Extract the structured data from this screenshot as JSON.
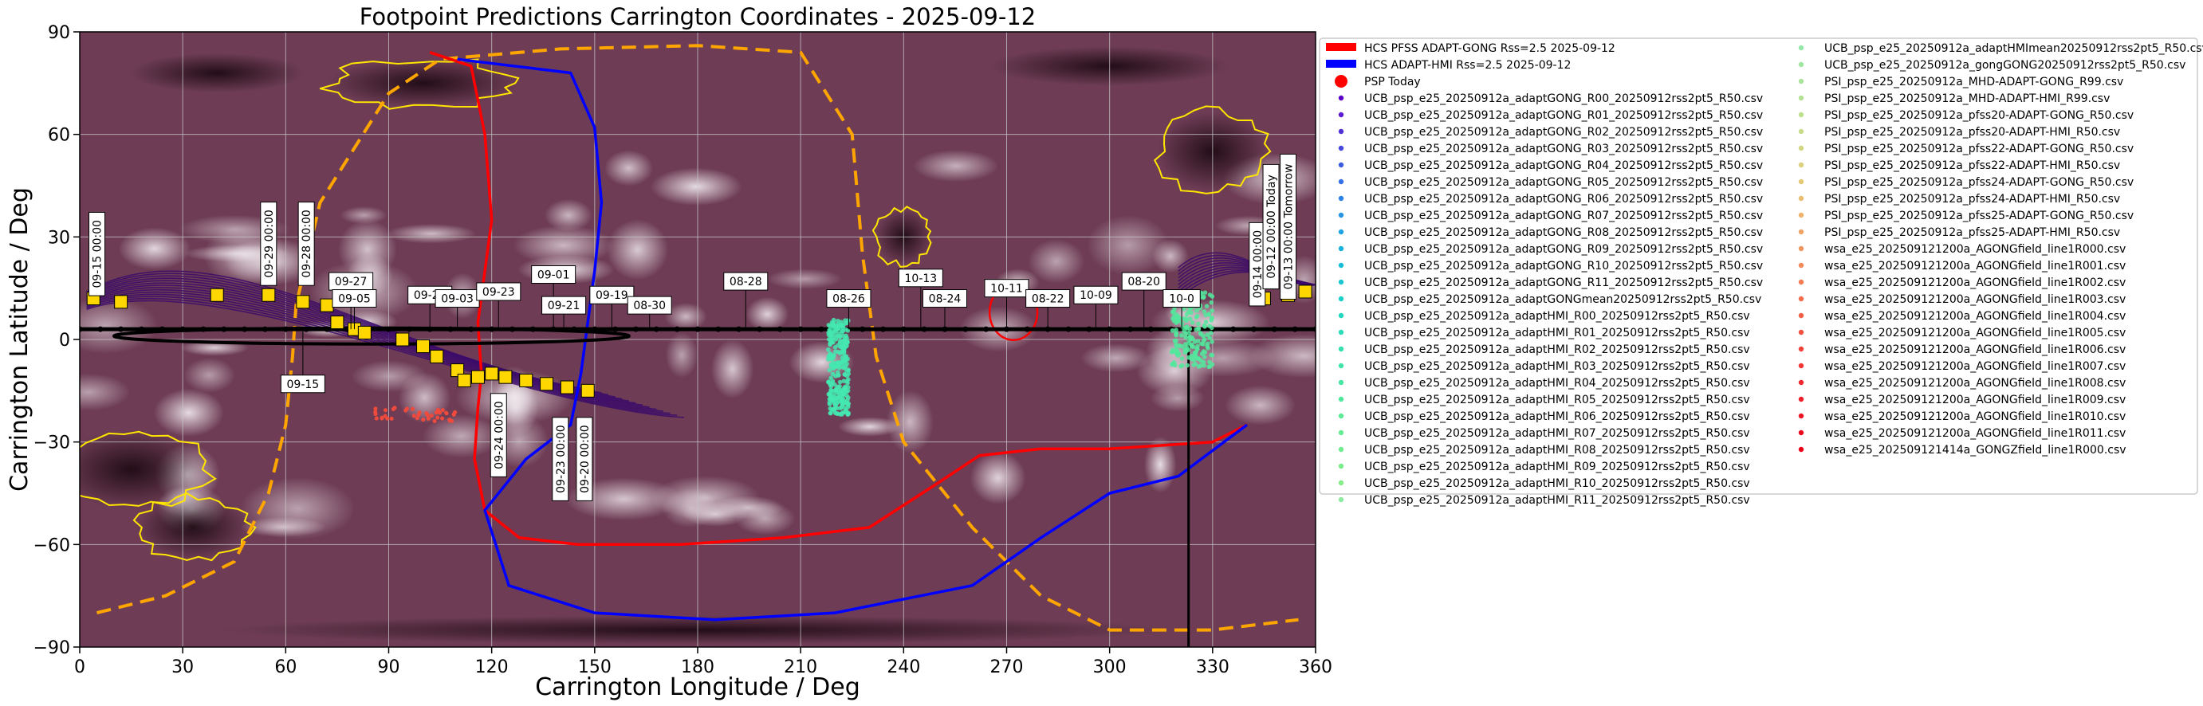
{
  "chart_data": {
    "type": "scatter",
    "title": "Footpoint Predictions Carrington Coordinates - 2025-09-12",
    "xlabel": "Carrington Longitude / Deg",
    "ylabel": "Carrington Latitude / Deg",
    "xlim": [
      0,
      360
    ],
    "ylim": [
      -90,
      90
    ],
    "xticks": [
      "0",
      "30",
      "60",
      "90",
      "120",
      "150",
      "180",
      "210",
      "240",
      "270",
      "300",
      "330",
      "360"
    ],
    "yticks": [
      "90",
      "60",
      "30",
      "0",
      "−30",
      "−60",
      "−90"
    ],
    "grid": true,
    "legend_position": "right",
    "colors": {
      "hcs_gong": "#ff0000",
      "hcs_hmi": "#0000ff",
      "psp_today": "#ff0000",
      "neutral_line": "#ffa500",
      "coronal_hole_contour": "#ffe600",
      "field_lines": "#3b0a6b",
      "footpoint_marker": "#ffd700",
      "background": "#6b3a52"
    },
    "hcs_gong": [
      [
        102,
        84
      ],
      [
        114,
        80
      ],
      [
        118,
        60
      ],
      [
        120,
        35
      ],
      [
        118,
        20
      ],
      [
        116,
        5
      ],
      [
        117,
        -10
      ],
      [
        116,
        -20
      ],
      [
        115,
        -35
      ],
      [
        118,
        -50
      ],
      [
        128,
        -58
      ],
      [
        145,
        -60
      ],
      [
        175,
        -60
      ],
      [
        205,
        -58
      ],
      [
        230,
        -55
      ],
      [
        250,
        -42
      ],
      [
        262,
        -34
      ],
      [
        280,
        -32
      ],
      [
        300,
        -32
      ],
      [
        330,
        -30
      ],
      [
        340,
        -25
      ]
    ],
    "hcs_hmi": [
      [
        110,
        82
      ],
      [
        143,
        78
      ],
      [
        150,
        62
      ],
      [
        152,
        40
      ],
      [
        150,
        20
      ],
      [
        148,
        5
      ],
      [
        146,
        -10
      ],
      [
        143,
        -25
      ],
      [
        130,
        -35
      ],
      [
        118,
        -50
      ],
      [
        125,
        -72
      ],
      [
        150,
        -80
      ],
      [
        185,
        -82
      ],
      [
        220,
        -80
      ],
      [
        260,
        -72
      ],
      [
        280,
        -58
      ],
      [
        300,
        -45
      ],
      [
        320,
        -40
      ],
      [
        340,
        -25
      ]
    ],
    "neutral_line": [
      [
        5,
        -80
      ],
      [
        25,
        -75
      ],
      [
        45,
        -65
      ],
      [
        55,
        -45
      ],
      [
        60,
        -25
      ],
      [
        62,
        -5
      ],
      [
        63,
        10
      ],
      [
        70,
        40
      ],
      [
        90,
        72
      ],
      [
        105,
        82
      ],
      [
        140,
        85
      ],
      [
        180,
        86
      ],
      [
        210,
        84
      ],
      [
        225,
        60
      ],
      [
        228,
        25
      ],
      [
        232,
        -5
      ],
      [
        240,
        -30
      ],
      [
        260,
        -55
      ],
      [
        280,
        -75
      ],
      [
        300,
        -85
      ],
      [
        330,
        -85
      ],
      [
        355,
        -82
      ]
    ],
    "psp_trajectory": {
      "lon_start": 0,
      "lon_end": 360,
      "lat": 3
    },
    "today_marker_lon": 323,
    "date_labels": [
      {
        "text": "09-15 00:00",
        "lon": 5,
        "lat": 25,
        "vertical": true
      },
      {
        "text": "09-29 00:00",
        "lon": 55,
        "lat": 28,
        "vertical": true
      },
      {
        "text": "09-28 00:00",
        "lon": 66,
        "lat": 28,
        "vertical": true
      },
      {
        "text": "09-27",
        "lon": 79,
        "lat": 17
      },
      {
        "text": "09-05",
        "lon": 80,
        "lat": 12
      },
      {
        "text": "09-25",
        "lon": 102,
        "lat": 13
      },
      {
        "text": "09-03",
        "lon": 110,
        "lat": 12
      },
      {
        "text": "09-23",
        "lon": 122,
        "lat": 14
      },
      {
        "text": "09-01",
        "lon": 138,
        "lat": 19
      },
      {
        "text": "09-21",
        "lon": 141,
        "lat": 10
      },
      {
        "text": "09-19",
        "lon": 155,
        "lat": 13
      },
      {
        "text": "08-30",
        "lon": 166,
        "lat": 10
      },
      {
        "text": "08-28",
        "lon": 194,
        "lat": 17
      },
      {
        "text": "08-26",
        "lon": 224,
        "lat": 12
      },
      {
        "text": "10-13",
        "lon": 245,
        "lat": 18
      },
      {
        "text": "08-24",
        "lon": 252,
        "lat": 12
      },
      {
        "text": "10-11",
        "lon": 270,
        "lat": 15
      },
      {
        "text": "08-22",
        "lon": 282,
        "lat": 12
      },
      {
        "text": "10-09",
        "lon": 296,
        "lat": 13
      },
      {
        "text": "08-20",
        "lon": 310,
        "lat": 17
      },
      {
        "text": "10-0",
        "lon": 321,
        "lat": 12
      },
      {
        "text": "09-15",
        "lon": 65,
        "lat": -13
      },
      {
        "text": "09-24 00:00",
        "lon": 122,
        "lat": -28,
        "vertical": true
      },
      {
        "text": "09-23 00:00",
        "lon": 140,
        "lat": -35,
        "vertical": true
      },
      {
        "text": "09-20 00:00",
        "lon": 147,
        "lat": -35,
        "vertical": true
      },
      {
        "text": "09-14 00:00",
        "lon": 343,
        "lat": 22,
        "vertical": true
      },
      {
        "text": "09-12 00:00 Today",
        "lon": 347,
        "lat": 33,
        "vertical": true
      },
      {
        "text": "09-13 00:00 Tomorrow",
        "lon": 352,
        "lat": 33,
        "vertical": true
      }
    ],
    "legend": [
      {
        "label": "HCS PFSS ADAPT-GONG Rss=2.5 2025-09-12",
        "color": "#ff0000",
        "marker": "line"
      },
      {
        "label": "HCS ADAPT-HMI Rss=2.5 2025-09-12",
        "color": "#0000ff",
        "marker": "line"
      },
      {
        "label": "PSP Today",
        "color": "#ff0000",
        "marker": "bigdot"
      },
      {
        "label": "UCB_psp_e25_20250912a_adaptGONG_R00_20250912rss2pt5_R50.csv",
        "color": "#5b00c8",
        "marker": "dot"
      },
      {
        "label": "UCB_psp_e25_20250912a_adaptGONG_R01_20250912rss2pt5_R50.csv",
        "color": "#5a1ad0",
        "marker": "dot"
      },
      {
        "label": "UCB_psp_e25_20250912a_adaptGONG_R02_20250912rss2pt5_R50.csv",
        "color": "#4f30d6",
        "marker": "dot"
      },
      {
        "label": "UCB_psp_e25_20250912a_adaptGONG_R03_20250912rss2pt5_R50.csv",
        "color": "#4546dc",
        "marker": "dot"
      },
      {
        "label": "UCB_psp_e25_20250912a_adaptGONG_R04_20250912rss2pt5_R50.csv",
        "color": "#3c5ce0",
        "marker": "dot"
      },
      {
        "label": "UCB_psp_e25_20250912a_adaptGONG_R05_20250912rss2pt5_R50.csv",
        "color": "#3470e3",
        "marker": "dot"
      },
      {
        "label": "UCB_psp_e25_20250912a_adaptGONG_R06_20250912rss2pt5_R50.csv",
        "color": "#2c82e4",
        "marker": "dot"
      },
      {
        "label": "UCB_psp_e25_20250912a_adaptGONG_R07_20250912rss2pt5_R50.csv",
        "color": "#2494e3",
        "marker": "dot"
      },
      {
        "label": "UCB_psp_e25_20250912a_adaptGONG_R08_20250912rss2pt5_R50.csv",
        "color": "#1ea4e0",
        "marker": "dot"
      },
      {
        "label": "UCB_psp_e25_20250912a_adaptGONG_R09_20250912rss2pt5_R50.csv",
        "color": "#1ab2dc",
        "marker": "dot"
      },
      {
        "label": "UCB_psp_e25_20250912a_adaptGONG_R10_20250912rss2pt5_R50.csv",
        "color": "#18bed6",
        "marker": "dot"
      },
      {
        "label": "UCB_psp_e25_20250912a_adaptGONG_R11_20250912rss2pt5_R50.csv",
        "color": "#18c8d0",
        "marker": "dot"
      },
      {
        "label": "UCB_psp_e25_20250912a_adaptGONGmean20250912rss2pt5_R50.csv",
        "color": "#1ad0c8",
        "marker": "dot"
      },
      {
        "label": "UCB_psp_e25_20250912a_adaptHMI_R00_20250912rss2pt5_R50.csv",
        "color": "#22d6c0",
        "marker": "dot"
      },
      {
        "label": "UCB_psp_e25_20250912a_adaptHMI_R01_20250912rss2pt5_R50.csv",
        "color": "#2adcb8",
        "marker": "dot"
      },
      {
        "label": "UCB_psp_e25_20250912a_adaptHMI_R02_20250912rss2pt5_R50.csv",
        "color": "#34e0b0",
        "marker": "dot"
      },
      {
        "label": "UCB_psp_e25_20250912a_adaptHMI_R03_20250912rss2pt5_R50.csv",
        "color": "#3ee4a8",
        "marker": "dot"
      },
      {
        "label": "UCB_psp_e25_20250912a_adaptHMI_R04_20250912rss2pt5_R50.csv",
        "color": "#48e6a2",
        "marker": "dot"
      },
      {
        "label": "UCB_psp_e25_20250912a_adaptHMI_R05_20250912rss2pt5_R50.csv",
        "color": "#52e89c",
        "marker": "dot"
      },
      {
        "label": "UCB_psp_e25_20250912a_adaptHMI_R06_20250912rss2pt5_R50.csv",
        "color": "#5cea96",
        "marker": "dot"
      },
      {
        "label": "UCB_psp_e25_20250912a_adaptHMI_R07_20250912rss2pt5_R50.csv",
        "color": "#66ec92",
        "marker": "dot"
      },
      {
        "label": "UCB_psp_e25_20250912a_adaptHMI_R08_20250912rss2pt5_R50.csv",
        "color": "#70ec8e",
        "marker": "dot"
      },
      {
        "label": "UCB_psp_e25_20250912a_adaptHMI_R09_20250912rss2pt5_R50.csv",
        "color": "#7aec8a",
        "marker": "dot"
      },
      {
        "label": "UCB_psp_e25_20250912a_adaptHMI_R10_20250912rss2pt5_R50.csv",
        "color": "#84ec88",
        "marker": "dot"
      },
      {
        "label": "UCB_psp_e25_20250912a_adaptHMI_R11_20250912rss2pt5_R50.csv",
        "color": "#8eeaa0",
        "marker": "dot"
      },
      {
        "label": "UCB_psp_e25_20250912a_adaptHMImean20250912rss2pt5_R50.csv",
        "color": "#96e8a8",
        "marker": "dot"
      },
      {
        "label": "UCB_psp_e25_20250912a_gongGONG20250912rss2pt5_R50.csv",
        "color": "#a0e6a0",
        "marker": "dot"
      },
      {
        "label": "PSI_psp_e25_20250912a_MHD-ADAPT-GONG_R99.csv",
        "color": "#aae49a",
        "marker": "dot"
      },
      {
        "label": "PSI_psp_e25_20250912a_MHD-ADAPT-HMI_R99.csv",
        "color": "#b4e294",
        "marker": "dot"
      },
      {
        "label": "PSI_psp_e25_20250912a_pfss20-ADAPT-GONG_R50.csv",
        "color": "#bedf8e",
        "marker": "dot"
      },
      {
        "label": "PSI_psp_e25_20250912a_pfss20-ADAPT-HMI_R50.csv",
        "color": "#c8db88",
        "marker": "dot"
      },
      {
        "label": "PSI_psp_e25_20250912a_pfss22-ADAPT-GONG_R50.csv",
        "color": "#d2d682",
        "marker": "dot"
      },
      {
        "label": "PSI_psp_e25_20250912a_pfss22-ADAPT-HMI_R50.csv",
        "color": "#dcd07c",
        "marker": "dot"
      },
      {
        "label": "PSI_psp_e25_20250912a_pfss24-ADAPT-GONG_R50.csv",
        "color": "#e4c876",
        "marker": "dot"
      },
      {
        "label": "PSI_psp_e25_20250912a_pfss24-ADAPT-HMI_R50.csv",
        "color": "#eabe70",
        "marker": "dot"
      },
      {
        "label": "PSI_psp_e25_20250912a_pfss25-ADAPT-GONG_R50.csv",
        "color": "#eeb26a",
        "marker": "dot"
      },
      {
        "label": "PSI_psp_e25_20250912a_pfss25-ADAPT-HMI_R50.csv",
        "color": "#f0a464",
        "marker": "dot"
      },
      {
        "label": "wsa_e25_202509121200a_AGONGfield_line1R000.csv",
        "color": "#f2965e",
        "marker": "dot"
      },
      {
        "label": "wsa_e25_202509121200a_AGONGfield_line1R001.csv",
        "color": "#f48858",
        "marker": "dot"
      },
      {
        "label": "wsa_e25_202509121200a_AGONGfield_line1R002.csv",
        "color": "#f47a52",
        "marker": "dot"
      },
      {
        "label": "wsa_e25_202509121200a_AGONGfield_line1R003.csv",
        "color": "#f46c4c",
        "marker": "dot"
      },
      {
        "label": "wsa_e25_202509121200a_AGONGfield_line1R004.csv",
        "color": "#f45e46",
        "marker": "dot"
      },
      {
        "label": "wsa_e25_202509121200a_AGONGfield_line1R005.csv",
        "color": "#f45040",
        "marker": "dot"
      },
      {
        "label": "wsa_e25_202509121200a_AGONGfield_line1R006.csv",
        "color": "#f4423a",
        "marker": "dot"
      },
      {
        "label": "wsa_e25_202509121200a_AGONGfield_line1R007.csv",
        "color": "#f43434",
        "marker": "dot"
      },
      {
        "label": "wsa_e25_202509121200a_AGONGfield_line1R008.csv",
        "color": "#f2282e",
        "marker": "dot"
      },
      {
        "label": "wsa_e25_202509121200a_AGONGfield_line1R009.csv",
        "color": "#f01c28",
        "marker": "dot"
      },
      {
        "label": "wsa_e25_202509121200a_AGONGfield_line1R010.csv",
        "color": "#ee1222",
        "marker": "dot"
      },
      {
        "label": "wsa_e25_202509121200a_AGONGfield_line1R011.csv",
        "color": "#ec081c",
        "marker": "dot"
      },
      {
        "label": "wsa_e25_202509121414a_GONGZfield_line1R000.csv",
        "color": "#ea0016",
        "marker": "dot"
      }
    ]
  }
}
